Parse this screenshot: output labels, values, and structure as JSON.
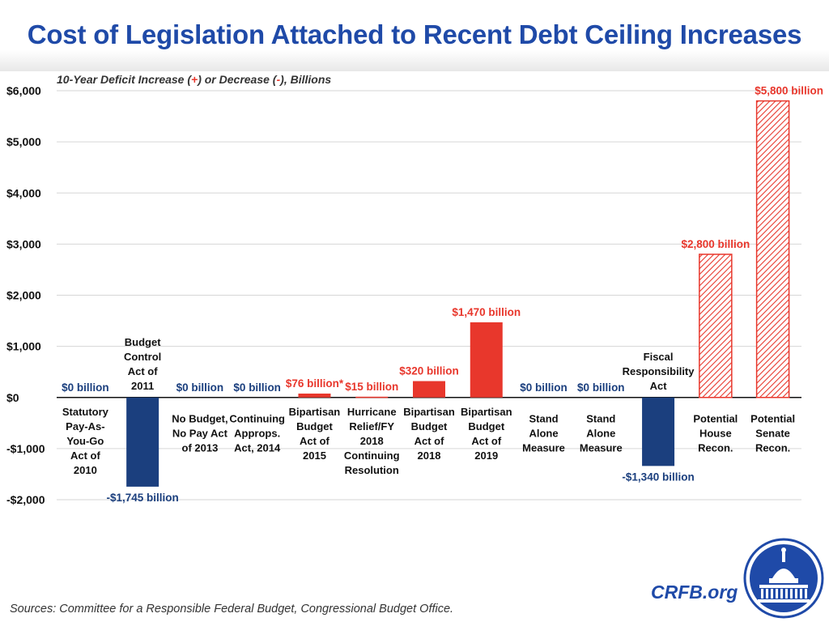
{
  "title": "Cost of Legislation Attached to Recent Debt Ceiling Increases",
  "subtitle": {
    "before": "10-Year Deficit Increase (",
    "plus": "+",
    "middle": ") or Decrease (",
    "minus": "-",
    "after": "), Billions"
  },
  "source": "Sources: Committee for a Responsible Federal Budget, Congressional Budget Office.",
  "brand": "CRFB.org",
  "colors": {
    "title": "#1f4aa8",
    "positive": "#e8372c",
    "negative": "#1b3f7e",
    "label_negative": "#1b3f7e",
    "zero_label": "#1b3f7e"
  },
  "chart_data": {
    "type": "bar",
    "title": "Cost of Legislation Attached to Recent Debt Ceiling Increases",
    "ylabel": "10-Year Deficit Increase (+) or Decrease (-), Billions",
    "ylim": [
      -2000,
      6000
    ],
    "yticks": [
      -2000,
      -1000,
      0,
      1000,
      2000,
      3000,
      4000,
      5000,
      6000
    ],
    "ytick_labels": [
      "-$2,000",
      "-$1,000",
      "$0",
      "$1,000",
      "$2,000",
      "$3,000",
      "$4,000",
      "$5,000",
      "$6,000"
    ],
    "grid": true,
    "bars": [
      {
        "name": "Statutory Pay-As-You-Go Act of 2010",
        "lines": [
          "Statutory",
          "Pay-As-",
          "You-Go",
          "Act of",
          "2010"
        ],
        "value": 0,
        "label": "$0 billion",
        "style": "zero"
      },
      {
        "name": "Budget Control Act of 2011",
        "lines": [
          "Budget",
          "Control",
          "Act of",
          "2011"
        ],
        "value": -1745,
        "label": "-$1,745 billion",
        "style": "negative"
      },
      {
        "name": "No Budget, No Pay Act of 2013",
        "lines": [
          "No Budget,",
          "No Pay Act",
          "of 2013"
        ],
        "value": 0,
        "label": "$0 billion",
        "style": "zero"
      },
      {
        "name": "Continuing Approps. Act, 2014",
        "lines": [
          "Continuing",
          "Approps.",
          "Act, 2014"
        ],
        "value": 0,
        "label": "$0 billion",
        "style": "zero"
      },
      {
        "name": "Bipartisan Budget Act of 2015",
        "lines": [
          "Bipartisan",
          "Budget",
          "Act of",
          "2015"
        ],
        "value": 76,
        "label": "$76 billion*",
        "style": "positive"
      },
      {
        "name": "Hurricane Relief/FY 2018 Continuing Resolution",
        "lines": [
          "Hurricane",
          "Relief/FY",
          "2018",
          "Continuing",
          "Resolution"
        ],
        "value": 15,
        "label": "$15 billion",
        "style": "positive"
      },
      {
        "name": "Bipartisan Budget Act of 2018",
        "lines": [
          "Bipartisan",
          "Budget",
          "Act of",
          "2018"
        ],
        "value": 320,
        "label": "$320 billion",
        "style": "positive"
      },
      {
        "name": "Bipartisan Budget Act of 2019",
        "lines": [
          "Bipartisan",
          "Budget",
          "Act of",
          "2019"
        ],
        "value": 1470,
        "label": "$1,470 billion",
        "style": "positive"
      },
      {
        "name": "Stand Alone Measure",
        "lines": [
          "Stand",
          "Alone",
          "Measure"
        ],
        "value": 0,
        "label": "$0 billion",
        "style": "zero"
      },
      {
        "name": "Stand Alone Measure",
        "lines": [
          "Stand",
          "Alone",
          "Measure"
        ],
        "value": 0,
        "label": "$0 billion",
        "style": "zero"
      },
      {
        "name": "Fiscal Responsibility Act",
        "lines": [
          "Fiscal",
          "Responsibility",
          "Act"
        ],
        "value": -1340,
        "label": "-$1,340 billion",
        "style": "negative"
      },
      {
        "name": "Potential House Recon.",
        "lines": [
          "Potential",
          "House",
          "Recon."
        ],
        "value": 2800,
        "label": "$2,800 billion",
        "style": "hatched"
      },
      {
        "name": "Potential Senate Recon.",
        "lines": [
          "Potential",
          "Senate",
          "Recon."
        ],
        "value": 5800,
        "label": "$5,800 billion",
        "style": "hatched"
      }
    ]
  }
}
